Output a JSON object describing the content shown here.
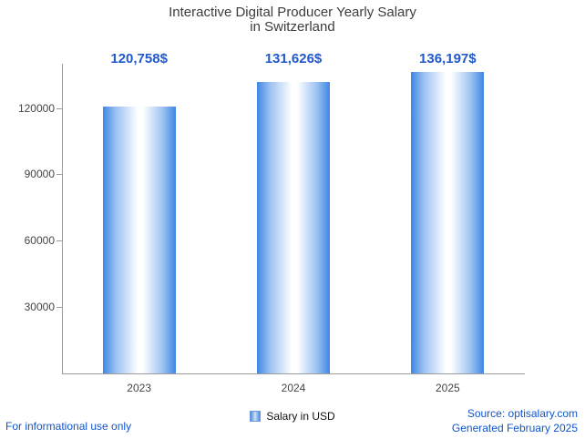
{
  "title": {
    "line1": "Interactive Digital Producer Yearly Salary",
    "line2": "in Switzerland"
  },
  "chart_data": {
    "type": "bar",
    "title": "Interactive Digital Producer Yearly Salary in Switzerland",
    "categories": [
      "2023",
      "2024",
      "2025"
    ],
    "values": [
      120758,
      131626,
      136197
    ],
    "value_labels": [
      "120,758$",
      "131,626$",
      "136,197$"
    ],
    "series": [
      {
        "name": "Salary in USD",
        "values": [
          120758,
          131626,
          136197
        ]
      }
    ],
    "xlabel": "",
    "ylabel": "",
    "ylim": [
      0,
      140000
    ],
    "yticks": [
      30000,
      60000,
      90000,
      120000
    ],
    "grid": false,
    "legend_position": "bottom",
    "colors": {
      "bar_edge": "#3f86e4",
      "bar_center": "#ffffff",
      "value_label": "#2158cc",
      "axis_text": "#444444",
      "axis_line": "#9a9a9a"
    }
  },
  "legend": {
    "label": "Salary in USD",
    "marker_color": "#6e96dc"
  },
  "footer": {
    "left_note": "For informational use only",
    "source": "Source: optisalary.com",
    "generated": "Generated February 2025",
    "text_color": "#1155cc"
  }
}
